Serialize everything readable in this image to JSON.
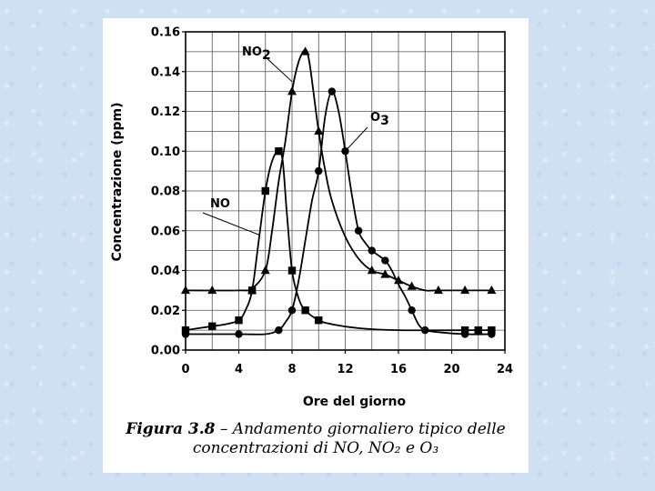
{
  "page": {
    "background_color": "#cfe0f3",
    "panel_color": "#ffffff"
  },
  "chart_data": {
    "type": "line",
    "xlabel": "Ore del giorno",
    "ylabel": "Concentrazione (ppm)",
    "xlim": [
      0,
      24
    ],
    "ylim": [
      0,
      0.16
    ],
    "xticks": [
      "0",
      "4",
      "8",
      "12",
      "16",
      "20",
      "24"
    ],
    "yticks": [
      "0.00",
      "0.02",
      "0.04",
      "0.06",
      "0.08",
      "0.10",
      "0.12",
      "0.14",
      "0.16"
    ],
    "grid": true,
    "series": [
      {
        "name": "NO2",
        "marker": "triangle",
        "points": [
          [
            0,
            0.03
          ],
          [
            2,
            0.03
          ],
          [
            5,
            0.03
          ],
          [
            6,
            0.04
          ],
          [
            8,
            0.13
          ],
          [
            9,
            0.15
          ],
          [
            10,
            0.11
          ],
          [
            14,
            0.04
          ],
          [
            15,
            0.038
          ],
          [
            16,
            0.035
          ],
          [
            17,
            0.032
          ],
          [
            19,
            0.03
          ],
          [
            21,
            0.03
          ],
          [
            23,
            0.03
          ]
        ],
        "curve": [
          [
            0,
            0.03
          ],
          [
            4,
            0.03
          ],
          [
            5,
            0.031
          ],
          [
            6,
            0.04
          ],
          [
            6.5,
            0.06
          ],
          [
            7,
            0.085
          ],
          [
            7.5,
            0.105
          ],
          [
            8,
            0.13
          ],
          [
            8.5,
            0.145
          ],
          [
            9,
            0.151
          ],
          [
            9.3,
            0.145
          ],
          [
            9.7,
            0.125
          ],
          [
            10,
            0.11
          ],
          [
            10.5,
            0.09
          ],
          [
            11,
            0.075
          ],
          [
            12,
            0.057
          ],
          [
            13,
            0.046
          ],
          [
            14,
            0.04
          ],
          [
            15,
            0.038
          ],
          [
            16,
            0.035
          ],
          [
            17,
            0.032
          ],
          [
            18,
            0.03
          ],
          [
            19,
            0.03
          ],
          [
            23,
            0.03
          ]
        ]
      },
      {
        "name": "NO",
        "marker": "square",
        "points": [
          [
            0,
            0.01
          ],
          [
            2,
            0.012
          ],
          [
            4,
            0.015
          ],
          [
            5,
            0.03
          ],
          [
            6,
            0.08
          ],
          [
            7,
            0.1
          ],
          [
            8,
            0.04
          ],
          [
            9,
            0.02
          ],
          [
            10,
            0.015
          ],
          [
            21,
            0.01
          ],
          [
            22,
            0.01
          ],
          [
            23,
            0.01
          ]
        ],
        "curve": [
          [
            0,
            0.01
          ],
          [
            2,
            0.012
          ],
          [
            3,
            0.013
          ],
          [
            4,
            0.015
          ],
          [
            4.5,
            0.02
          ],
          [
            5,
            0.03
          ],
          [
            5.5,
            0.055
          ],
          [
            6,
            0.08
          ],
          [
            6.5,
            0.095
          ],
          [
            7,
            0.1
          ],
          [
            7.3,
            0.095
          ],
          [
            7.6,
            0.07
          ],
          [
            8,
            0.04
          ],
          [
            8.5,
            0.026
          ],
          [
            9,
            0.02
          ],
          [
            10,
            0.015
          ],
          [
            11,
            0.013
          ],
          [
            13,
            0.011
          ],
          [
            16,
            0.01
          ],
          [
            23,
            0.01
          ]
        ]
      },
      {
        "name": "O3",
        "marker": "circle",
        "points": [
          [
            0,
            0.008
          ],
          [
            4,
            0.008
          ],
          [
            7,
            0.01
          ],
          [
            8,
            0.02
          ],
          [
            10,
            0.09
          ],
          [
            11,
            0.13
          ],
          [
            12,
            0.1
          ],
          [
            13,
            0.06
          ],
          [
            14,
            0.05
          ],
          [
            15,
            0.045
          ],
          [
            17,
            0.02
          ],
          [
            18,
            0.01
          ],
          [
            21,
            0.008
          ],
          [
            23,
            0.008
          ]
        ],
        "curve": [
          [
            0,
            0.008
          ],
          [
            4,
            0.008
          ],
          [
            6,
            0.008
          ],
          [
            7,
            0.01
          ],
          [
            7.5,
            0.014
          ],
          [
            8,
            0.02
          ],
          [
            8.5,
            0.035
          ],
          [
            9,
            0.055
          ],
          [
            9.5,
            0.075
          ],
          [
            10,
            0.09
          ],
          [
            10.5,
            0.118
          ],
          [
            11,
            0.13
          ],
          [
            11.5,
            0.12
          ],
          [
            12,
            0.1
          ],
          [
            12.5,
            0.078
          ],
          [
            13,
            0.06
          ],
          [
            13.5,
            0.054
          ],
          [
            14,
            0.05
          ],
          [
            15,
            0.045
          ],
          [
            15.5,
            0.04
          ],
          [
            16,
            0.033
          ],
          [
            16.5,
            0.027
          ],
          [
            17,
            0.02
          ],
          [
            17.5,
            0.013
          ],
          [
            18,
            0.01
          ],
          [
            19,
            0.009
          ],
          [
            21,
            0.008
          ],
          [
            23,
            0.008
          ]
        ]
      }
    ],
    "annotations": [
      {
        "text": "NO2",
        "series": "NO2",
        "pointer_to": [
          8,
          0.135
        ]
      },
      {
        "text": "O3",
        "series": "O3",
        "pointer_to": [
          12,
          0.1
        ]
      },
      {
        "text": "NO",
        "series": "NO",
        "pointer_to": [
          5.5,
          0.058
        ]
      }
    ]
  },
  "caption": {
    "label": "Figura 3.8",
    "text": " – Andamento giornaliero tipico delle concentrazioni di NO, NO₂ e O₃"
  }
}
